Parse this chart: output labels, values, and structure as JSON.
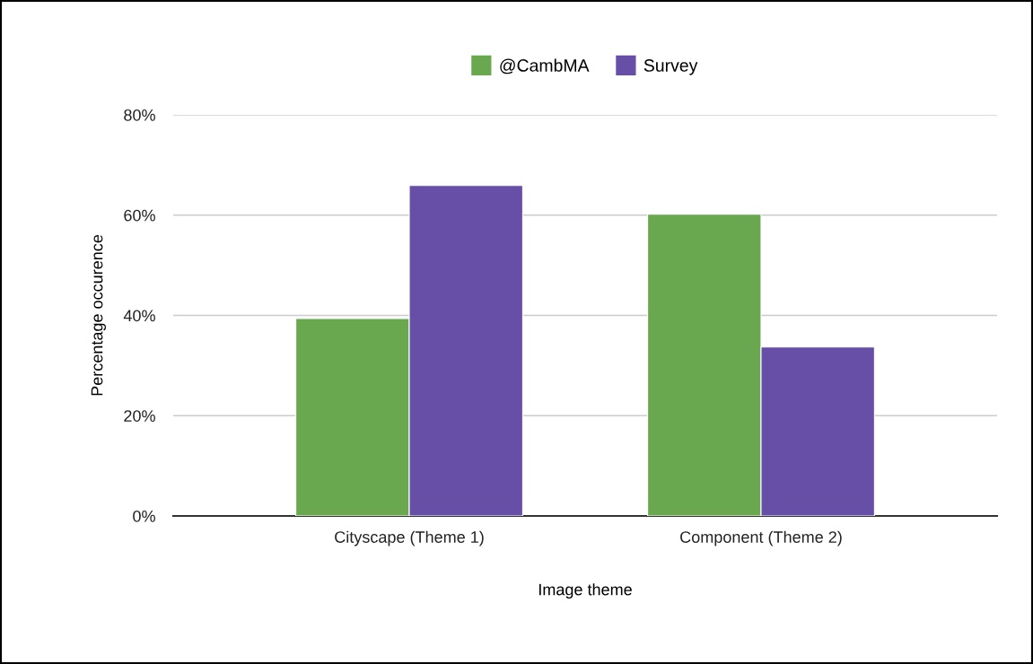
{
  "chart_data": {
    "type": "bar",
    "xlabel": "Image theme",
    "ylabel": "Percentage occurence",
    "categories": [
      "Cityscape (Theme 1)",
      "Component (Theme 2)"
    ],
    "series": [
      {
        "name": "@CambMA",
        "color": "#6aa84f",
        "values": [
          39.4,
          60.2
        ]
      },
      {
        "name": "Survey",
        "color": "#674ea7",
        "values": [
          65.9,
          33.7
        ]
      }
    ],
    "ylim": [
      0,
      80
    ],
    "yticks": [
      {
        "value": 0,
        "label": "0%"
      },
      {
        "value": 20,
        "label": "20%"
      },
      {
        "value": 40,
        "label": "40%"
      },
      {
        "value": 60,
        "label": "60%"
      },
      {
        "value": 80,
        "label": "80%"
      }
    ],
    "grid": "y",
    "legend": "top"
  }
}
